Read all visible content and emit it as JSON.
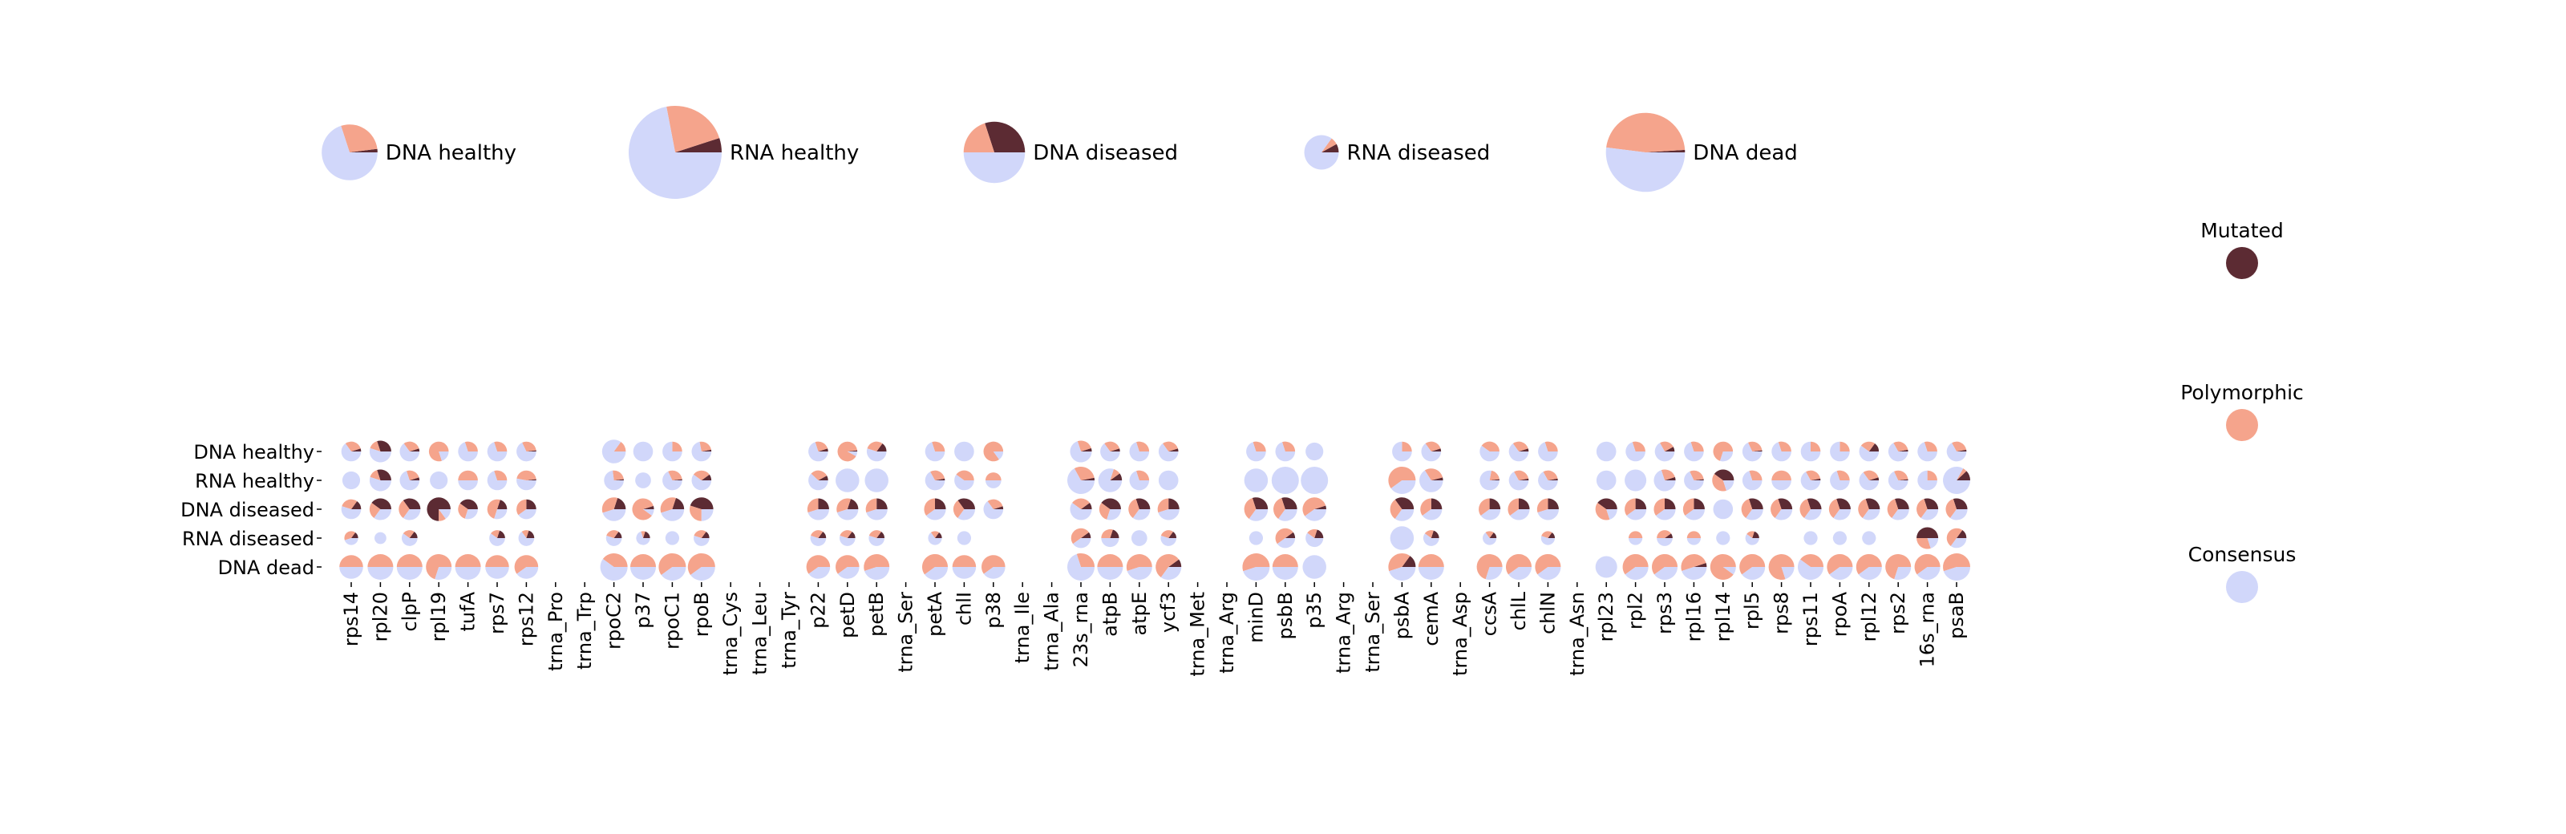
{
  "colors": {
    "consensus": "#D1D7FA",
    "polymorphic": "#F5A48C",
    "mutated": "#5C2B33"
  },
  "legend": {
    "mutated": "Mutated",
    "polymorphic": "Polymorphic",
    "consensus": "Consensus"
  },
  "chart_data": {
    "type": "pie-matrix",
    "title": "",
    "xlabel": "",
    "ylabel": "",
    "grid": false,
    "legend_position": "right",
    "rows": [
      "DNA healthy",
      "RNA healthy",
      "DNA diseased",
      "RNA diseased",
      "DNA dead"
    ],
    "categories": [
      "rps14",
      "rpl20",
      "clpP",
      "rpl19",
      "tufA",
      "rps7",
      "rps12",
      "trna_Pro",
      "trna_Trp",
      "rpoC2",
      "p37",
      "rpoC1",
      "rpoB",
      "trna_Cys",
      "trna_Leu",
      "trna_Tyr",
      "p22",
      "petD",
      "petB",
      "trna_Ser",
      "petA",
      "chlI",
      "p38",
      "trna_Ile",
      "trna_Ala",
      "23s_rna",
      "atpB",
      "atpE",
      "ycf3",
      "trna_Met",
      "trna_Arg",
      "minD",
      "psbB",
      "p35",
      "trna_Arg",
      "trna_Ser",
      "psbA",
      "cemA",
      "trna_Asp",
      "ccsA",
      "chlL",
      "chlN",
      "trna_Asn",
      "rpl23",
      "rpl2",
      "rps3",
      "rpl16",
      "rpl14",
      "rpl5",
      "rps8",
      "rps11",
      "rpoA",
      "rpl12",
      "rps2",
      "16s_rna",
      "psaB"
    ],
    "summary": [
      {
        "label": "DNA healthy",
        "size": 0.6,
        "consensus": 0.7,
        "polymorphic": 0.28,
        "mutated": 0.02
      },
      {
        "label": "RNA healthy",
        "size": 1.0,
        "consensus": 0.72,
        "polymorphic": 0.23,
        "mutated": 0.05
      },
      {
        "label": "DNA diseased",
        "size": 0.66,
        "consensus": 0.5,
        "polymorphic": 0.2,
        "mutated": 0.3
      },
      {
        "label": "RNA diseased",
        "size": 0.37,
        "consensus": 0.85,
        "polymorphic": 0.07,
        "mutated": 0.08
      },
      {
        "label": "DNA dead",
        "size": 0.85,
        "consensus": 0.52,
        "polymorphic": 0.47,
        "mutated": 0.01
      }
    ],
    "cells": [
      [
        {
          "s": 0.5,
          "p": 0.3,
          "m": 0.05
        },
        {
          "s": 0.55,
          "p": 0.15,
          "m": 0.3
        },
        {
          "s": 0.5,
          "p": 0.3,
          "m": 0.05
        },
        {
          "s": 0.5,
          "p": 0.8,
          "m": 0
        },
        {
          "s": 0.5,
          "p": 0.3,
          "m": 0
        },
        {
          "s": 0.5,
          "p": 0.3,
          "m": 0
        },
        {
          "s": 0.5,
          "p": 0.3,
          "m": 0.02
        },
        null,
        null,
        {
          "s": 0.6,
          "p": 0.15,
          "m": 0
        },
        {
          "s": 0.5,
          "p": 0,
          "m": 0
        },
        {
          "s": 0.5,
          "p": 0.25,
          "m": 0
        },
        {
          "s": 0.5,
          "p": 0.25,
          "m": 0.03
        },
        null,
        null,
        null,
        {
          "s": 0.5,
          "p": 0.25,
          "m": 0.05
        },
        {
          "s": 0.5,
          "p": 0.9,
          "m": 0.02
        },
        {
          "s": 0.5,
          "p": 0.3,
          "m": 0.15
        },
        null,
        {
          "s": 0.5,
          "p": 0.3,
          "m": 0
        },
        {
          "s": 0.5,
          "p": 0,
          "m": 0
        },
        {
          "s": 0.5,
          "p": 0.85,
          "m": 0
        },
        null,
        null,
        {
          "s": 0.55,
          "p": 0.25,
          "m": 0.05
        },
        {
          "s": 0.5,
          "p": 0.3,
          "m": 0.05
        },
        {
          "s": 0.5,
          "p": 0.3,
          "m": 0
        },
        {
          "s": 0.5,
          "p": 0.3,
          "m": 0.05
        },
        null,
        null,
        {
          "s": 0.5,
          "p": 0.3,
          "m": 0
        },
        {
          "s": 0.5,
          "p": 0.3,
          "m": 0
        },
        {
          "s": 0.45,
          "p": 0,
          "m": 0
        },
        null,
        null,
        {
          "s": 0.5,
          "p": 0.25,
          "m": 0
        },
        {
          "s": 0.5,
          "p": 0.3,
          "m": 0.05
        },
        null,
        {
          "s": 0.5,
          "p": 0.4,
          "m": 0
        },
        {
          "s": 0.5,
          "p": 0.3,
          "m": 0.05
        },
        {
          "s": 0.5,
          "p": 0.3,
          "m": 0
        },
        null,
        {
          "s": 0.5,
          "p": 0,
          "m": 0
        },
        {
          "s": 0.5,
          "p": 0.3,
          "m": 0
        },
        {
          "s": 0.5,
          "p": 0.25,
          "m": 0.08
        },
        {
          "s": 0.5,
          "p": 0.3,
          "m": 0
        },
        {
          "s": 0.5,
          "p": 0.7,
          "m": 0
        },
        {
          "s": 0.5,
          "p": 0.3,
          "m": 0.02
        },
        {
          "s": 0.5,
          "p": 0.3,
          "m": 0
        },
        {
          "s": 0.5,
          "p": 0.25,
          "m": 0
        },
        {
          "s": 0.5,
          "p": 0.25,
          "m": 0
        },
        {
          "s": 0.5,
          "p": 0.25,
          "m": 0.15
        },
        {
          "s": 0.5,
          "p": 0.3,
          "m": 0.03
        },
        {
          "s": 0.5,
          "p": 0.3,
          "m": 0
        },
        {
          "s": 0.5,
          "p": 0.3,
          "m": 0.03
        }
      ],
      [
        {
          "s": 0.45,
          "p": 0,
          "m": 0
        },
        {
          "s": 0.55,
          "p": 0.15,
          "m": 0.3
        },
        {
          "s": 0.5,
          "p": 0.25,
          "m": 0.05
        },
        {
          "s": 0.45,
          "p": 0,
          "m": 0
        },
        {
          "s": 0.5,
          "p": 0.5,
          "m": 0
        },
        {
          "s": 0.5,
          "p": 0.3,
          "m": 0
        },
        {
          "s": 0.5,
          "p": 0.45,
          "m": 0.02
        },
        null,
        null,
        {
          "s": 0.5,
          "p": 0.25,
          "m": 0.02
        },
        {
          "s": 0.4,
          "p": 0,
          "m": 0
        },
        {
          "s": 0.5,
          "p": 0.3,
          "m": 0.02
        },
        {
          "s": 0.5,
          "p": 0.3,
          "m": 0.1
        },
        null,
        null,
        null,
        {
          "s": 0.5,
          "p": 0.3,
          "m": 0.08
        },
        {
          "s": 0.6,
          "p": 0,
          "m": 0
        },
        {
          "s": 0.6,
          "p": 0,
          "m": 0
        },
        null,
        {
          "s": 0.5,
          "p": 0.3,
          "m": 0.03
        },
        {
          "s": 0.5,
          "p": 0.4,
          "m": 0
        },
        {
          "s": 0.4,
          "p": 0.5,
          "m": 0
        },
        null,
        null,
        {
          "s": 0.7,
          "p": 0.3,
          "m": 0.03
        },
        {
          "s": 0.6,
          "p": 0.1,
          "m": 0.1
        },
        {
          "s": 0.5,
          "p": 0.3,
          "m": 0
        },
        {
          "s": 0.5,
          "p": 0,
          "m": 0
        },
        null,
        null,
        {
          "s": 0.6,
          "p": 0,
          "m": 0
        },
        {
          "s": 0.7,
          "p": 0,
          "m": 0
        },
        {
          "s": 0.7,
          "p": 0,
          "m": 0
        },
        null,
        null,
        {
          "s": 0.7,
          "p": 0.6,
          "m": 0
        },
        {
          "s": 0.6,
          "p": 0.3,
          "m": 0.04
        },
        null,
        {
          "s": 0.5,
          "p": 0.2,
          "m": 0.02
        },
        {
          "s": 0.5,
          "p": 0.3,
          "m": 0.03
        },
        {
          "s": 0.5,
          "p": 0.3,
          "m": 0.03
        },
        null,
        {
          "s": 0.5,
          "p": 0,
          "m": 0
        },
        {
          "s": 0.55,
          "p": 0,
          "m": 0
        },
        {
          "s": 0.55,
          "p": 0.25,
          "m": 0.05
        },
        {
          "s": 0.5,
          "p": 0.3,
          "m": 0.02
        },
        {
          "s": 0.55,
          "p": 0.4,
          "m": 0.4
        },
        {
          "s": 0.5,
          "p": 0.3,
          "m": 0
        },
        {
          "s": 0.5,
          "p": 0.5,
          "m": 0
        },
        {
          "s": 0.5,
          "p": 0.3,
          "m": 0.03
        },
        {
          "s": 0.5,
          "p": 0.3,
          "m": 0
        },
        {
          "s": 0.5,
          "p": 0.3,
          "m": 0.05
        },
        {
          "s": 0.5,
          "p": 0.3,
          "m": 0.02
        },
        {
          "s": 0.5,
          "p": 0.25,
          "m": 0
        },
        {
          "s": 0.7,
          "p": 0.05,
          "m": 0.12
        }
      ],
      [
        {
          "s": 0.5,
          "p": 0.3,
          "m": 0.15
        },
        {
          "s": 0.55,
          "p": 0.25,
          "m": 0.4
        },
        {
          "s": 0.55,
          "p": 0.3,
          "m": 0.35
        },
        {
          "s": 0.6,
          "p": 0.1,
          "m": 0.75
        },
        {
          "s": 0.5,
          "p": 0.3,
          "m": 0.4
        },
        {
          "s": 0.5,
          "p": 0.5,
          "m": 0.2
        },
        {
          "s": 0.5,
          "p": 0.35,
          "m": 0.25
        },
        null,
        null,
        {
          "s": 0.6,
          "p": 0.35,
          "m": 0.2
        },
        {
          "s": 0.55,
          "p": 0.85,
          "m": 0.05
        },
        {
          "s": 0.6,
          "p": 0.35,
          "m": 0.2
        },
        {
          "s": 0.6,
          "p": 0.3,
          "m": 0.45
        },
        null,
        null,
        null,
        {
          "s": 0.55,
          "p": 0.3,
          "m": 0.25
        },
        {
          "s": 0.55,
          "p": 0.35,
          "m": 0.2
        },
        {
          "s": 0.55,
          "p": 0.3,
          "m": 0.25
        },
        null,
        {
          "s": 0.55,
          "p": 0.35,
          "m": 0.25
        },
        {
          "s": 0.55,
          "p": 0.3,
          "m": 0.35
        },
        {
          "s": 0.5,
          "p": 0.3,
          "m": 0.05
        },
        null,
        null,
        {
          "s": 0.55,
          "p": 0.3,
          "m": 0.1
        },
        {
          "s": 0.55,
          "p": 0.3,
          "m": 0.4
        },
        {
          "s": 0.55,
          "p": 0.35,
          "m": 0.3
        },
        {
          "s": 0.55,
          "p": 0.3,
          "m": 0.25
        },
        null,
        null,
        {
          "s": 0.6,
          "p": 0.35,
          "m": 0.3
        },
        {
          "s": 0.6,
          "p": 0.35,
          "m": 0.3
        },
        {
          "s": 0.6,
          "p": 0.55,
          "m": 0.05
        },
        null,
        null,
        {
          "s": 0.6,
          "p": 0.3,
          "m": 0.35
        },
        {
          "s": 0.55,
          "p": 0.35,
          "m": 0.25
        },
        null,
        {
          "s": 0.55,
          "p": 0.35,
          "m": 0.25
        },
        {
          "s": 0.55,
          "p": 0.35,
          "m": 0.25
        },
        {
          "s": 0.55,
          "p": 0.3,
          "m": 0.25
        },
        null,
        {
          "s": 0.55,
          "p": 0.4,
          "m": 0.4
        },
        {
          "s": 0.55,
          "p": 0.35,
          "m": 0.25
        },
        {
          "s": 0.55,
          "p": 0.35,
          "m": 0.25
        },
        {
          "s": 0.55,
          "p": 0.35,
          "m": 0.25
        },
        {
          "s": 0.5,
          "p": 0,
          "m": 0
        },
        {
          "s": 0.55,
          "p": 0.35,
          "m": 0.3
        },
        {
          "s": 0.55,
          "p": 0.35,
          "m": 0.3
        },
        {
          "s": 0.55,
          "p": 0.35,
          "m": 0.3
        },
        {
          "s": 0.55,
          "p": 0.35,
          "m": 0.3
        },
        {
          "s": 0.55,
          "p": 0.35,
          "m": 0.3
        },
        {
          "s": 0.55,
          "p": 0.35,
          "m": 0.3
        },
        {
          "s": 0.55,
          "p": 0.35,
          "m": 0.3
        },
        {
          "s": 0.55,
          "p": 0.35,
          "m": 0.3
        }
      ],
      [
        {
          "s": 0.35,
          "p": 0.4,
          "m": 0.15
        },
        {
          "s": 0.3,
          "p": 0,
          "m": 0
        },
        {
          "s": 0.4,
          "p": 0.25,
          "m": 0.15
        },
        null,
        null,
        {
          "s": 0.4,
          "p": 0.2,
          "m": 0.2
        },
        {
          "s": 0.4,
          "p": 0.15,
          "m": 0.2
        },
        null,
        null,
        {
          "s": 0.4,
          "p": 0.3,
          "m": 0.15
        },
        {
          "s": 0.35,
          "p": 0.1,
          "m": 0.2
        },
        {
          "s": 0.35,
          "p": 0,
          "m": 0
        },
        {
          "s": 0.4,
          "p": 0.3,
          "m": 0.15
        },
        null,
        null,
        null,
        {
          "s": 0.4,
          "p": 0.3,
          "m": 0.15
        },
        {
          "s": 0.4,
          "p": 0.3,
          "m": 0.15
        },
        {
          "s": 0.4,
          "p": 0.3,
          "m": 0.15
        },
        null,
        {
          "s": 0.35,
          "p": 0.2,
          "m": 0.15
        },
        {
          "s": 0.35,
          "p": 0,
          "m": 0
        },
        null,
        null,
        null,
        {
          "s": 0.5,
          "p": 0.5,
          "m": 0.1
        },
        {
          "s": 0.45,
          "p": 0.3,
          "m": 0.2
        },
        {
          "s": 0.4,
          "p": 0,
          "m": 0
        },
        {
          "s": 0.4,
          "p": 0.3,
          "m": 0.15
        },
        null,
        null,
        {
          "s": 0.35,
          "p": 0,
          "m": 0
        },
        {
          "s": 0.5,
          "p": 0.5,
          "m": 0.1
        },
        {
          "s": 0.45,
          "p": 0.2,
          "m": 0.2
        },
        null,
        null,
        {
          "s": 0.6,
          "p": 0,
          "m": 0
        },
        {
          "s": 0.4,
          "p": 0.2,
          "m": 0.2
        },
        null,
        {
          "s": 0.35,
          "p": 0.2,
          "m": 0.15
        },
        null,
        {
          "s": 0.35,
          "p": 0.3,
          "m": 0.15
        },
        null,
        null,
        {
          "s": 0.35,
          "p": 0.5,
          "m": 0
        },
        {
          "s": 0.4,
          "p": 0.4,
          "m": 0.1
        },
        {
          "s": 0.35,
          "p": 0.5,
          "m": 0
        },
        {
          "s": 0.35,
          "p": 0,
          "m": 0
        },
        {
          "s": 0.35,
          "p": 0.2,
          "m": 0.2
        },
        null,
        {
          "s": 0.35,
          "p": 0,
          "m": 0
        },
        {
          "s": 0.35,
          "p": 0,
          "m": 0
        },
        {
          "s": 0.35,
          "p": 0,
          "m": 0
        },
        null,
        {
          "s": 0.55,
          "p": 0.3,
          "m": 0.5
        },
        {
          "s": 0.5,
          "p": 0.5,
          "m": 0.15
        }
      ],
      [
        {
          "s": 0.6,
          "p": 0.5,
          "m": 0
        },
        {
          "s": 0.65,
          "p": 0.5,
          "m": 0
        },
        {
          "s": 0.65,
          "p": 0.5,
          "m": 0
        },
        {
          "s": 0.65,
          "p": 0.7,
          "m": 0
        },
        {
          "s": 0.65,
          "p": 0.5,
          "m": 0
        },
        {
          "s": 0.6,
          "p": 0.5,
          "m": 0
        },
        {
          "s": 0.6,
          "p": 0.6,
          "m": 0
        },
        null,
        null,
        {
          "s": 0.7,
          "p": 0.4,
          "m": 0
        },
        {
          "s": 0.65,
          "p": 0.5,
          "m": 0
        },
        {
          "s": 0.7,
          "p": 0.6,
          "m": 0
        },
        {
          "s": 0.7,
          "p": 0.6,
          "m": 0
        },
        null,
        null,
        null,
        {
          "s": 0.6,
          "p": 0.6,
          "m": 0
        },
        {
          "s": 0.6,
          "p": 0.6,
          "m": 0
        },
        {
          "s": 0.65,
          "p": 0.55,
          "m": 0
        },
        null,
        {
          "s": 0.65,
          "p": 0.6,
          "m": 0
        },
        {
          "s": 0.6,
          "p": 0.5,
          "m": 0
        },
        {
          "s": 0.6,
          "p": 0.6,
          "m": 0
        },
        null,
        null,
        {
          "s": 0.7,
          "p": 0.3,
          "m": 0
        },
        {
          "s": 0.65,
          "p": 0.5,
          "m": 0
        },
        {
          "s": 0.65,
          "p": 0.55,
          "m": 0
        },
        {
          "s": 0.65,
          "p": 0.55,
          "m": 0.1
        },
        null,
        null,
        {
          "s": 0.7,
          "p": 0.55,
          "m": 0
        },
        {
          "s": 0.65,
          "p": 0.5,
          "m": 0
        },
        {
          "s": 0.6,
          "p": 0,
          "m": 0
        },
        null,
        null,
        {
          "s": 0.7,
          "p": 0.4,
          "m": 0.15
        },
        {
          "s": 0.65,
          "p": 0.5,
          "m": 0
        },
        null,
        {
          "s": 0.65,
          "p": 0.7,
          "m": 0
        },
        {
          "s": 0.65,
          "p": 0.6,
          "m": 0
        },
        {
          "s": 0.65,
          "p": 0.6,
          "m": 0
        },
        null,
        {
          "s": 0.55,
          "p": 0,
          "m": 0
        },
        {
          "s": 0.65,
          "p": 0.6,
          "m": 0
        },
        {
          "s": 0.65,
          "p": 0.6,
          "m": 0
        },
        {
          "s": 0.65,
          "p": 0.5,
          "m": 0.05
        },
        {
          "s": 0.65,
          "p": 0.9,
          "m": 0
        },
        {
          "s": 0.65,
          "p": 0.6,
          "m": 0
        },
        {
          "s": 0.65,
          "p": 0.8,
          "m": 0
        },
        {
          "s": 0.65,
          "p": 0.4,
          "m": 0
        },
        {
          "s": 0.65,
          "p": 0.6,
          "m": 0
        },
        {
          "s": 0.65,
          "p": 0.6,
          "m": 0
        },
        {
          "s": 0.65,
          "p": 0.7,
          "m": 0
        },
        {
          "s": 0.65,
          "p": 0.6,
          "m": 0
        },
        {
          "s": 0.7,
          "p": 0.55,
          "m": 0
        }
      ]
    ]
  }
}
